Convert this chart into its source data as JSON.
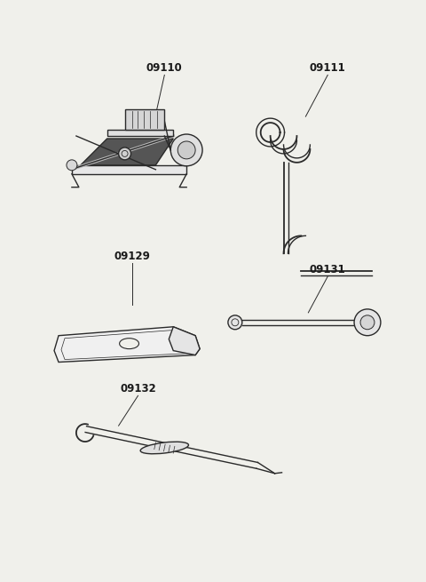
{
  "bg_color": "#f0f0eb",
  "line_color": "#2a2a2a",
  "text_color": "#1a1a1a",
  "label_fontsize": 8.5,
  "figsize": [
    4.8,
    6.55
  ],
  "dpi": 100
}
